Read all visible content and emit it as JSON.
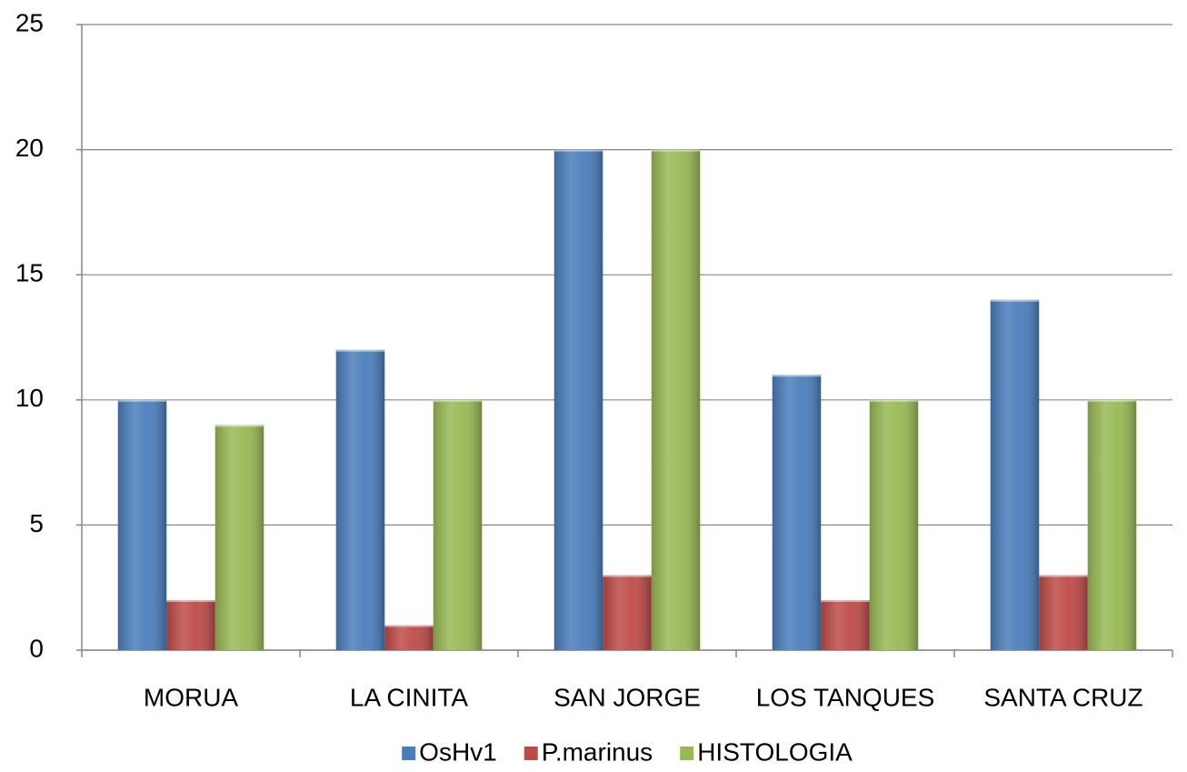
{
  "chart_data": {
    "type": "bar",
    "categories": [
      "MORUA",
      "LA CINITA",
      "SAN JORGE",
      "LOS TANQUES",
      "SANTA CRUZ"
    ],
    "series": [
      {
        "name": "OsHv1",
        "color": "#4a7ebb",
        "values": [
          10,
          12,
          20,
          11,
          14
        ]
      },
      {
        "name": "P.marinus",
        "color": "#be4b48",
        "values": [
          2,
          1,
          3,
          2,
          3
        ]
      },
      {
        "name": "HISTOLOGIA",
        "color": "#98b954",
        "values": [
          9,
          10,
          20,
          10,
          10
        ]
      }
    ],
    "ylim": [
      0,
      25
    ],
    "yticks": [
      0,
      5,
      10,
      15,
      20,
      25
    ],
    "grid": true,
    "legend": "bottom"
  }
}
